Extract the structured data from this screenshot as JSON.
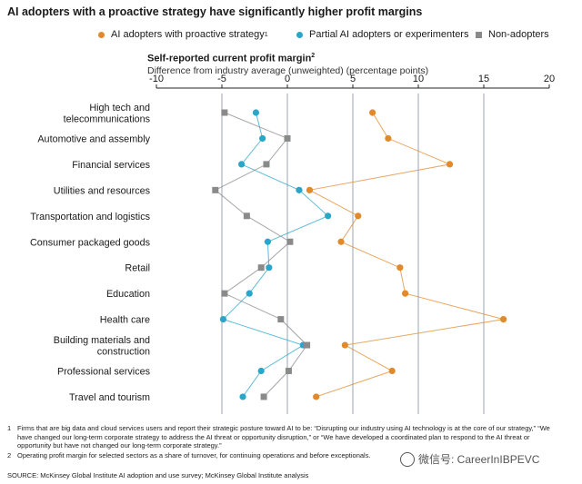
{
  "title": "AI adopters with a proactive strategy have significantly higher profit margins",
  "legend": {
    "proactive": "AI adopters with proactive strategy",
    "proactive_sup": "1",
    "partial": "Partial AI adopters or experimenters",
    "non": "Non-adopters"
  },
  "colors": {
    "proactive": "#e08a2c",
    "partial": "#2aa6c8",
    "non": "#8a8a8a",
    "grid": "#9aa3b5"
  },
  "chart_data": {
    "type": "scatter",
    "title": "Self-reported current profit margin",
    "title_sup": "2",
    "subtitle": "Difference from industry average (unweighted) (percentage points)",
    "xlim": [
      -10,
      20
    ],
    "xticks": [
      "-10",
      "-5",
      "0",
      "5",
      "10",
      "15",
      "20"
    ],
    "categories": [
      "High tech and\ntelecommunications",
      "Automotive and assembly",
      "Financial services",
      "Utilities and resources",
      "Transportation and logistics",
      "Consumer packaged goods",
      "Retail",
      "Education",
      "Health care",
      "Building materials and\nconstruction",
      "Professional services",
      "Travel and tourism"
    ],
    "series": [
      {
        "name": "AI adopters with proactive strategy",
        "key": "proactive",
        "values": [
          6.5,
          7.7,
          12.4,
          1.7,
          5.4,
          4.1,
          8.6,
          9.0,
          16.5,
          4.4,
          8.0,
          2.2
        ]
      },
      {
        "name": "Partial AI adopters or experimenters",
        "key": "partial",
        "values": [
          -2.4,
          -1.9,
          -3.5,
          0.9,
          3.1,
          -1.5,
          -1.4,
          -2.9,
          -4.9,
          1.2,
          -2.0,
          -3.4
        ]
      },
      {
        "name": "Non-adopters",
        "key": "non",
        "values": [
          -4.8,
          0.0,
          -1.6,
          -5.5,
          -3.1,
          0.2,
          -2.0,
          -4.8,
          -0.5,
          1.5,
          0.1,
          -1.8
        ]
      }
    ]
  },
  "footnotes": [
    {
      "num": "1",
      "text": "Firms that are big data and cloud services users and report their strategic posture toward AI to be: “Disrupting our industry using AI technology is at the core of our strategy,” “We have changed our long-term corporate strategy to address the AI threat or opportunity disruption,” or “We have developed a coordinated plan to respond to the AI threat or opportunity but have not changed our long-term corporate strategy.”"
    },
    {
      "num": "2",
      "text": "Operating profit margin for selected sectors as a share of turnover, for continuing operations and before exceptionals."
    }
  ],
  "source": "SOURCE: McKinsey Global Institute AI adoption and use survey; McKinsey Global Institute analysis",
  "watermark": "微信号: CareerInIBPEVC"
}
